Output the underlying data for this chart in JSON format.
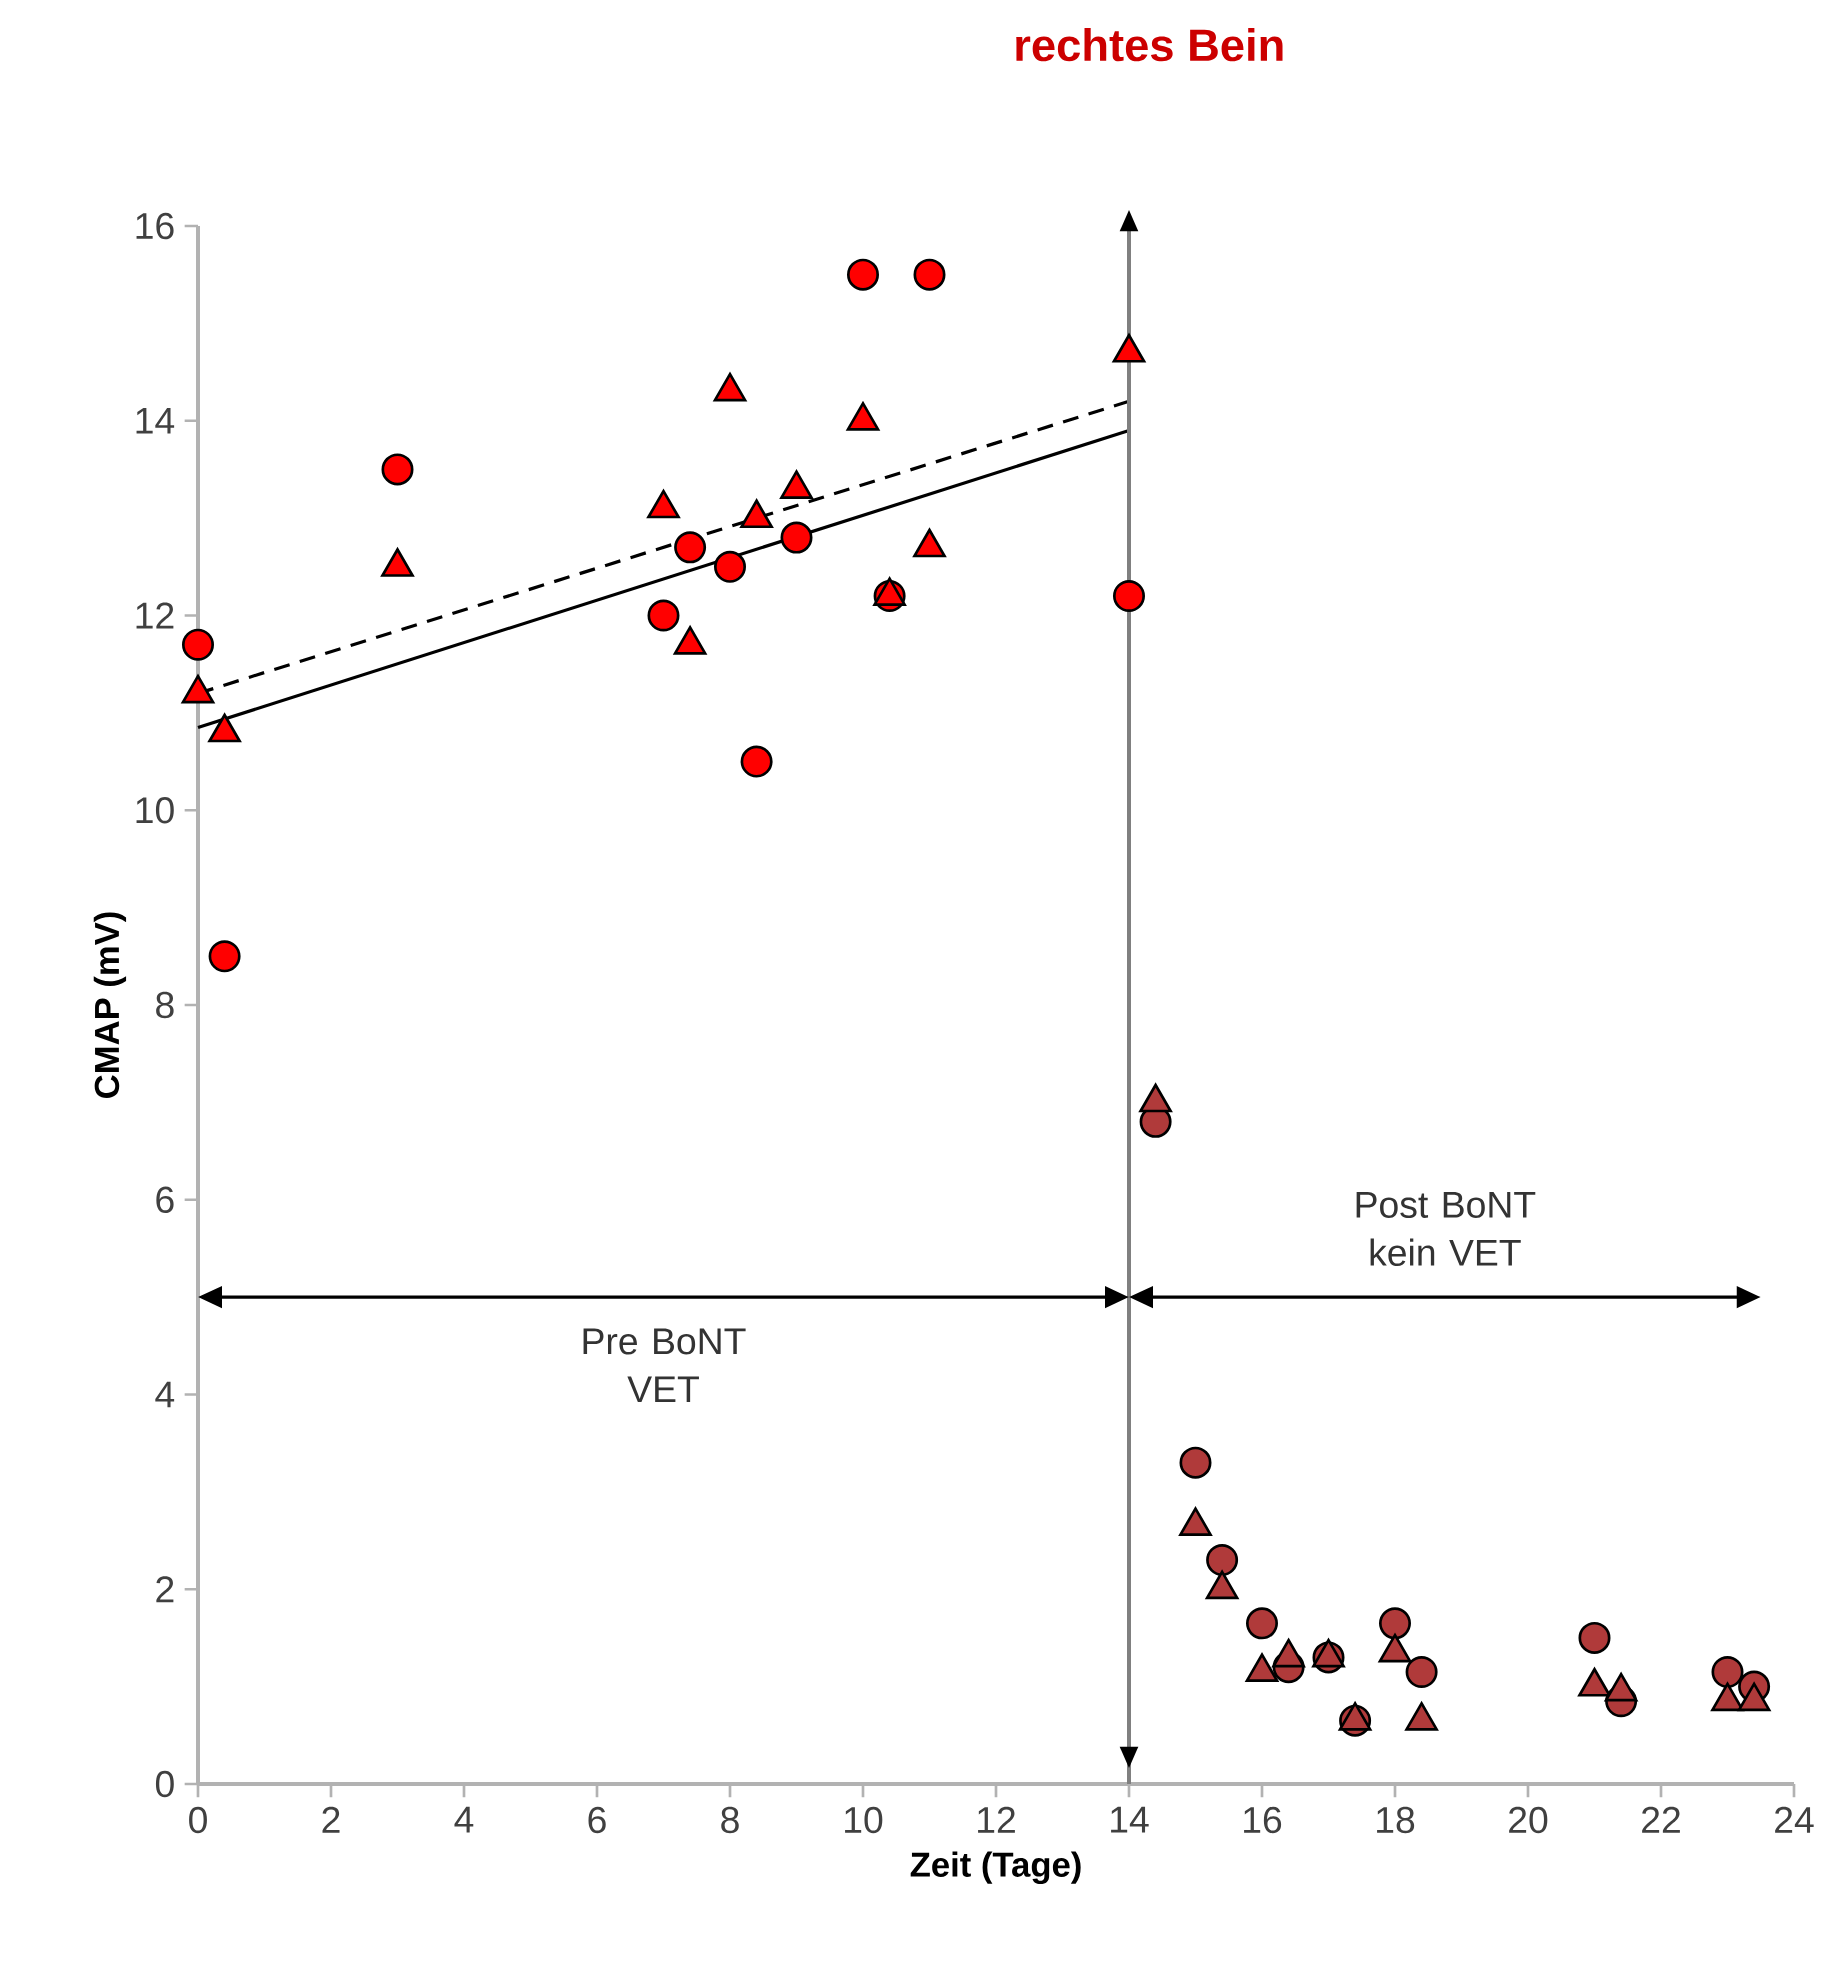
{
  "chart_data": {
    "type": "scatter",
    "title": "rechtes Bein",
    "xlabel": "Zeit (Tage)",
    "ylabel": "CMAP (mV)",
    "xlim": [
      0,
      24
    ],
    "ylim": [
      0,
      16
    ],
    "xticks": [
      0,
      2,
      4,
      6,
      8,
      10,
      12,
      14,
      16,
      18,
      20,
      22,
      24
    ],
    "yticks": [
      0,
      2,
      4,
      6,
      8,
      10,
      12,
      14,
      16
    ],
    "grid": false,
    "series": [
      {
        "marker": "circle",
        "color": "#ff0000",
        "x": [
          0,
          0.4,
          3,
          7,
          7.4,
          8,
          8.4,
          9,
          10,
          10.4,
          11,
          14
        ],
        "values": [
          11.7,
          8.5,
          13.5,
          12,
          12.7,
          12.5,
          10.5,
          12.8,
          15.5,
          12.2,
          15.5,
          12.2
        ]
      },
      {
        "marker": "triangle",
        "color": "#ff0000",
        "x": [
          0,
          0.4,
          3,
          7,
          7.4,
          8,
          8.4,
          9,
          10,
          10.4,
          11,
          14
        ],
        "values": [
          11.2,
          10.8,
          12.5,
          13.1,
          11.7,
          14.3,
          13.0,
          13.3,
          14.0,
          12.2,
          12.7,
          14.7
        ]
      },
      {
        "marker": "circle",
        "color": "#b03a3a",
        "x": [
          14.4,
          15,
          15.4,
          16,
          16.4,
          17,
          17.4,
          18,
          18.4,
          21,
          21.4,
          23,
          23.4
        ],
        "values": [
          6.8,
          3.3,
          2.3,
          1.65,
          1.2,
          1.3,
          0.65,
          1.65,
          1.15,
          1.5,
          0.85,
          1.15,
          1.0
        ]
      },
      {
        "marker": "triangle",
        "color": "#b03a3a",
        "x": [
          14.4,
          15,
          15.4,
          16,
          16.4,
          17,
          17.4,
          18,
          18.4,
          21,
          21.4,
          23,
          23.4
        ],
        "values": [
          7.0,
          2.65,
          2.0,
          1.15,
          1.3,
          1.3,
          0.65,
          1.35,
          0.65,
          1.0,
          0.95,
          0.85,
          0.85
        ]
      },
      {
        "type": "line",
        "line_style": "solid",
        "color": "#000000",
        "x": [
          0,
          14
        ],
        "values": [
          10.85,
          13.9
        ]
      },
      {
        "type": "line",
        "line_style": "dashed",
        "color": "#000000",
        "x": [
          0,
          14
        ],
        "values": [
          11.2,
          14.2
        ]
      }
    ],
    "ref_lines": [
      {
        "axis": "x",
        "value": 14,
        "color": "#808080"
      }
    ],
    "annotations": [
      "Pre BoNT VET",
      "Post BoNT kein VET"
    ]
  }
}
